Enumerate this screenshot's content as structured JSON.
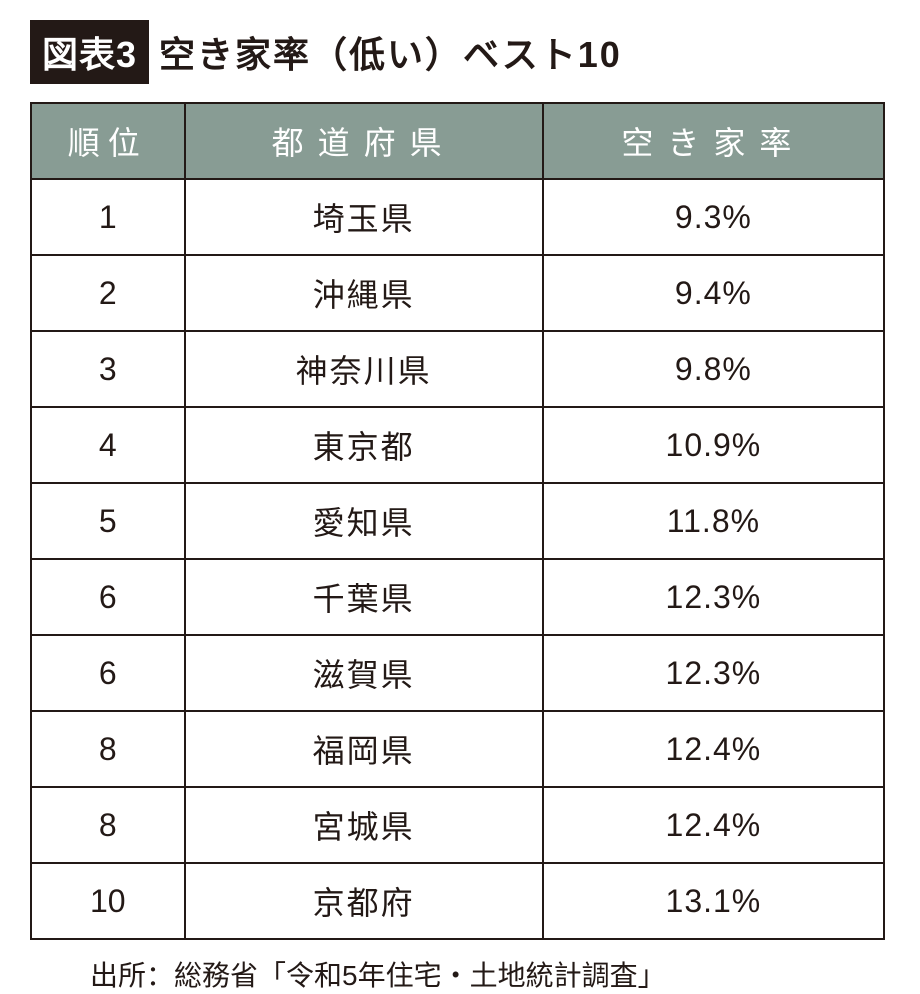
{
  "figure": {
    "badge": "図表3",
    "title": "空き家率（低い）ベスト10"
  },
  "table": {
    "type": "table",
    "header_bg_color": "#889c94",
    "header_text_color": "#ffffff",
    "border_color": "#231916",
    "cell_bg_color": "#ffffff",
    "cell_text_color": "#231916",
    "header_fontsize": 32,
    "cell_fontsize": 32,
    "columns": [
      {
        "key": "rank",
        "label": "順位",
        "width_pct": 18
      },
      {
        "key": "prefecture",
        "label": "都道府県",
        "width_pct": 42
      },
      {
        "key": "rate",
        "label": "空き家率",
        "width_pct": 40
      }
    ],
    "rows": [
      {
        "rank": "1",
        "prefecture": "埼玉県",
        "rate": "9.3%"
      },
      {
        "rank": "2",
        "prefecture": "沖縄県",
        "rate": "9.4%"
      },
      {
        "rank": "3",
        "prefecture": "神奈川県",
        "rate": "9.8%"
      },
      {
        "rank": "4",
        "prefecture": "東京都",
        "rate": "10.9%"
      },
      {
        "rank": "5",
        "prefecture": "愛知県",
        "rate": "11.8%"
      },
      {
        "rank": "6",
        "prefecture": "千葉県",
        "rate": "12.3%"
      },
      {
        "rank": "6",
        "prefecture": "滋賀県",
        "rate": "12.3%"
      },
      {
        "rank": "8",
        "prefecture": "福岡県",
        "rate": "12.4%"
      },
      {
        "rank": "8",
        "prefecture": "宮城県",
        "rate": "12.4%"
      },
      {
        "rank": "10",
        "prefecture": "京都府",
        "rate": "13.1%"
      }
    ]
  },
  "source": "出所：総務省「令和5年住宅・土地統計調査」"
}
